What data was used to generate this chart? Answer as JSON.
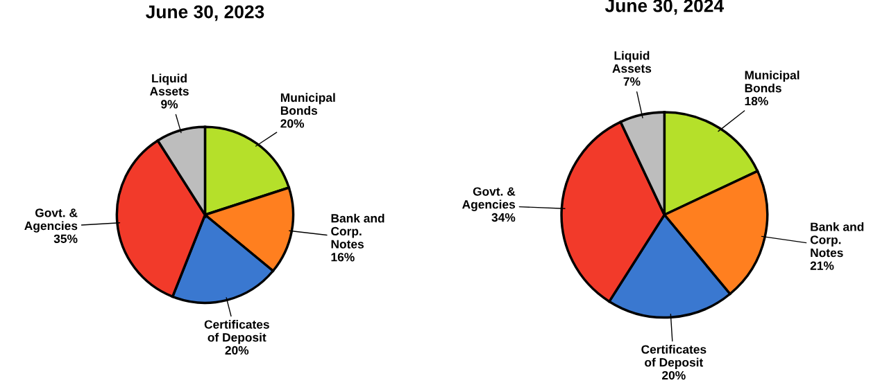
{
  "chart_data": [
    {
      "type": "pie",
      "title": "June 30, 2023",
      "categories": [
        "Municipal\nBonds",
        "Bank and\nCorp.\nNotes",
        "Certificates\nof Deposit",
        "Govt. &\nAgencies",
        "Liquid\nAssets"
      ],
      "values": [
        20,
        16,
        20,
        35,
        9
      ],
      "value_labels": [
        "20%",
        "16%",
        "20%",
        "35%",
        "9%"
      ],
      "colors": [
        "#b5e02a",
        "#ff7f1f",
        "#3a78d0",
        "#f23a2a",
        "#bdbdbd"
      ]
    },
    {
      "type": "pie",
      "title": "June 30, 2024",
      "categories": [
        "Municipal\nBonds",
        "Bank and\nCorp.\nNotes",
        "Certificates\nof Deposit",
        "Govt. &\nAgencies",
        "Liquid\nAssets"
      ],
      "values": [
        18,
        21,
        20,
        34,
        7
      ],
      "value_labels": [
        "18%",
        "21%",
        "20%",
        "34%",
        "7%"
      ],
      "colors": [
        "#b5e02a",
        "#ff7f1f",
        "#3a78d0",
        "#f23a2a",
        "#bdbdbd"
      ]
    }
  ]
}
